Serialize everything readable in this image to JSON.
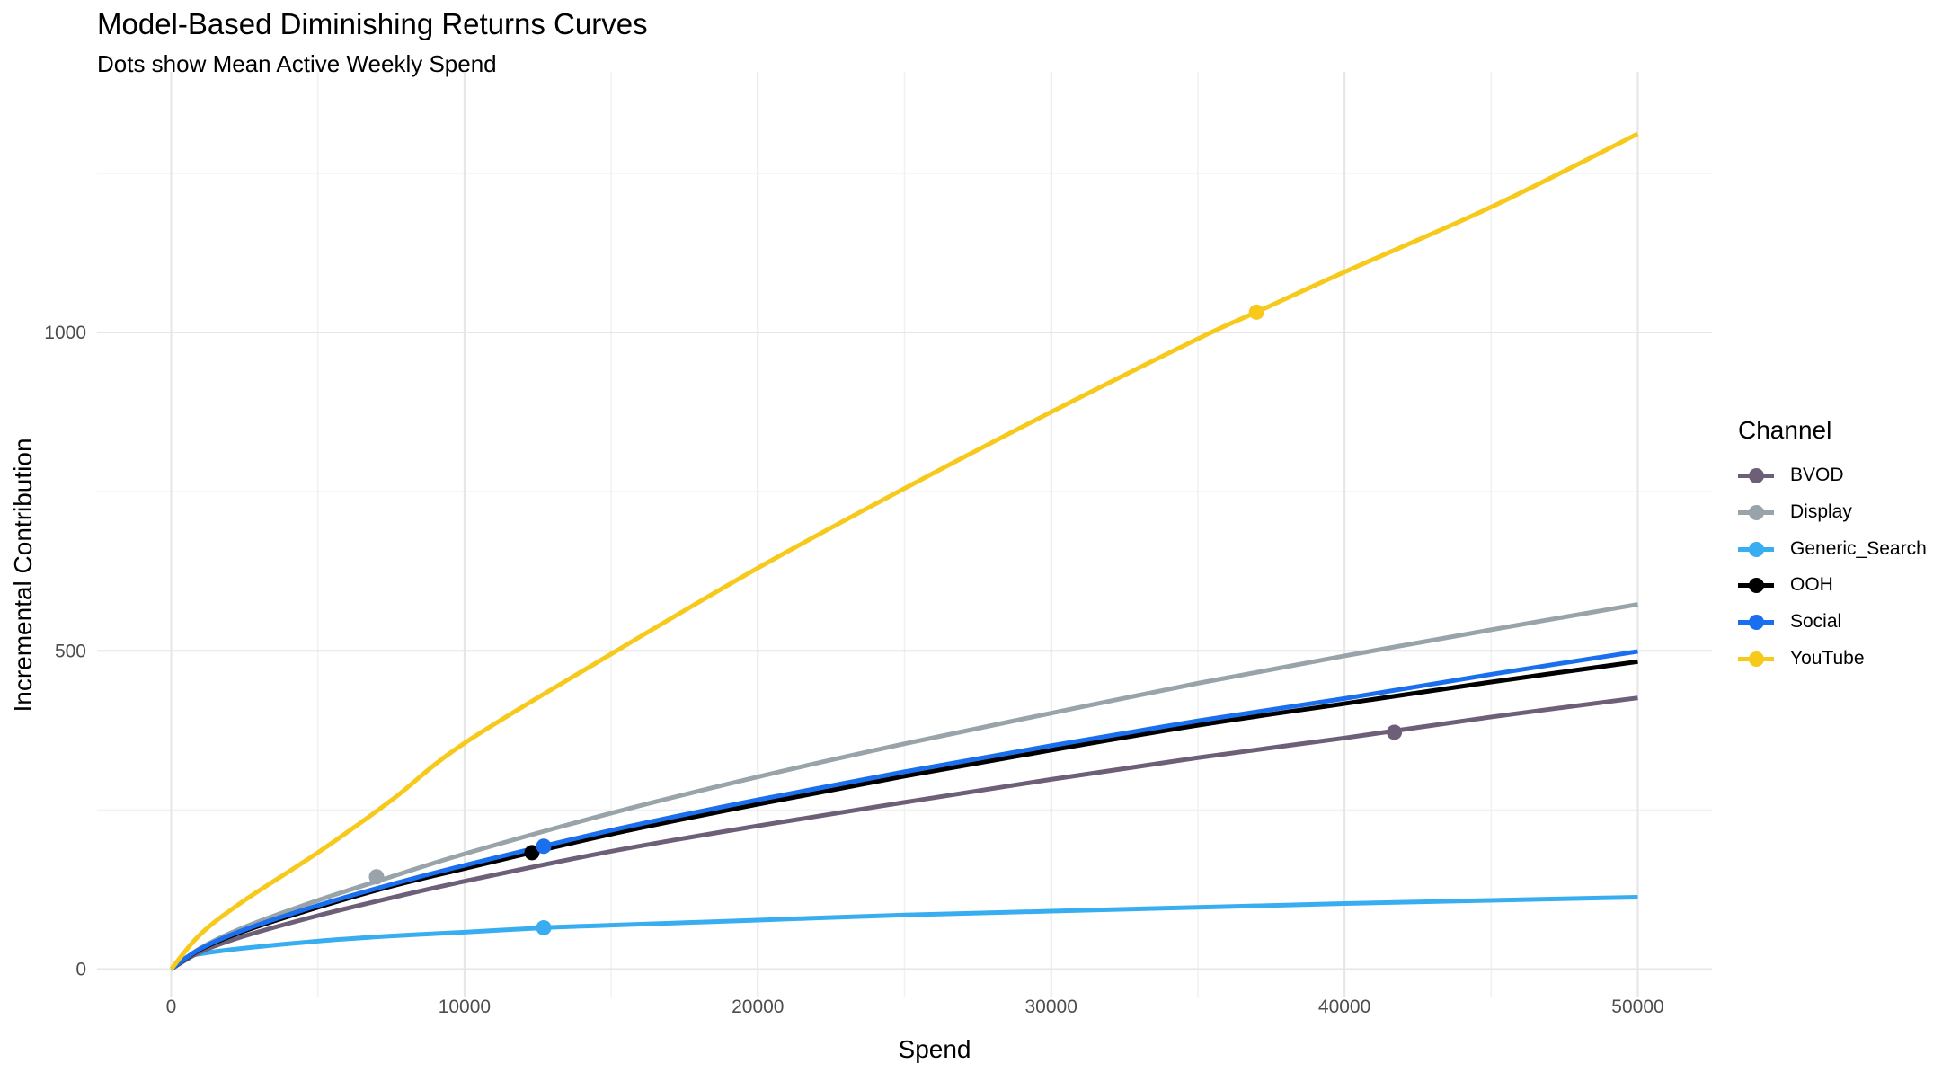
{
  "chart_data": {
    "type": "line",
    "title": "Model-Based Diminishing Returns Curves",
    "subtitle": "Dots show Mean Active Weekly Spend",
    "xlabel": "Spend",
    "ylabel": "Incremental Contribution",
    "xlim": [
      0,
      50000
    ],
    "ylim": [
      0,
      1300
    ],
    "x_ticks": [
      0,
      10000,
      20000,
      30000,
      40000,
      50000
    ],
    "y_ticks": [
      0,
      500,
      1000
    ],
    "grid": true,
    "legend": {
      "title": "Channel",
      "position": "right"
    },
    "series": [
      {
        "name": "BVOD",
        "color": "#6e5f78",
        "x": [
          0,
          1000,
          2500,
          5000,
          7500,
          10000,
          15000,
          20000,
          25000,
          30000,
          35000,
          40000,
          45000,
          50000
        ],
        "y": [
          0,
          27,
          52,
          84,
          112,
          138,
          185,
          225,
          262,
          298,
          332,
          363,
          396,
          426
        ],
        "mean_spend": {
          "x": 41700,
          "y": 372
        }
      },
      {
        "name": "Display",
        "color": "#98a4a9",
        "x": [
          0,
          1000,
          2500,
          5000,
          7500,
          10000,
          15000,
          20000,
          25000,
          30000,
          35000,
          40000,
          45000,
          50000
        ],
        "y": [
          0,
          33,
          66,
          108,
          145,
          181,
          245,
          302,
          354,
          402,
          449,
          492,
          533,
          573
        ],
        "mean_spend": {
          "x": 7000,
          "y": 145
        }
      },
      {
        "name": "Generic_Search",
        "color": "#38aef0",
        "x": [
          0,
          500,
          1000,
          2500,
          5000,
          7500,
          10000,
          12700,
          15000,
          20000,
          25000,
          30000,
          35000,
          40000,
          45000,
          50000
        ],
        "y": [
          0,
          18,
          24,
          33,
          44,
          52,
          58,
          65,
          69,
          77,
          85,
          91,
          97,
          103,
          108,
          113
        ],
        "mean_spend": {
          "x": 12700,
          "y": 65
        }
      },
      {
        "name": "OOH",
        "color": "#000000",
        "x": [
          0,
          1000,
          2500,
          5000,
          7500,
          10000,
          15000,
          20000,
          25000,
          30000,
          35000,
          40000,
          45000,
          50000
        ],
        "y": [
          0,
          31,
          60,
          97,
          130,
          158,
          212,
          259,
          303,
          344,
          383,
          417,
          451,
          483
        ],
        "mean_spend": {
          "x": 12300,
          "y": 183
        }
      },
      {
        "name": "Social",
        "color": "#1a6fee",
        "x": [
          0,
          1000,
          2500,
          5000,
          7500,
          10000,
          15000,
          20000,
          25000,
          30000,
          35000,
          40000,
          45000,
          50000
        ],
        "y": [
          0,
          32,
          62,
          100,
          133,
          163,
          218,
          266,
          310,
          351,
          390,
          425,
          463,
          499
        ],
        "mean_spend": {
          "x": 12700,
          "y": 193
        }
      },
      {
        "name": "YouTube",
        "color": "#f7c91a",
        "x": [
          0,
          1000,
          2500,
          5000,
          7500,
          10000,
          15000,
          20000,
          25000,
          30000,
          35000,
          37000,
          40000,
          45000,
          50000
        ],
        "y": [
          0,
          55,
          108,
          183,
          265,
          355,
          495,
          630,
          755,
          875,
          990,
          1032,
          1095,
          1197,
          1312
        ],
        "mean_spend": {
          "x": 37000,
          "y": 1032
        }
      }
    ]
  }
}
